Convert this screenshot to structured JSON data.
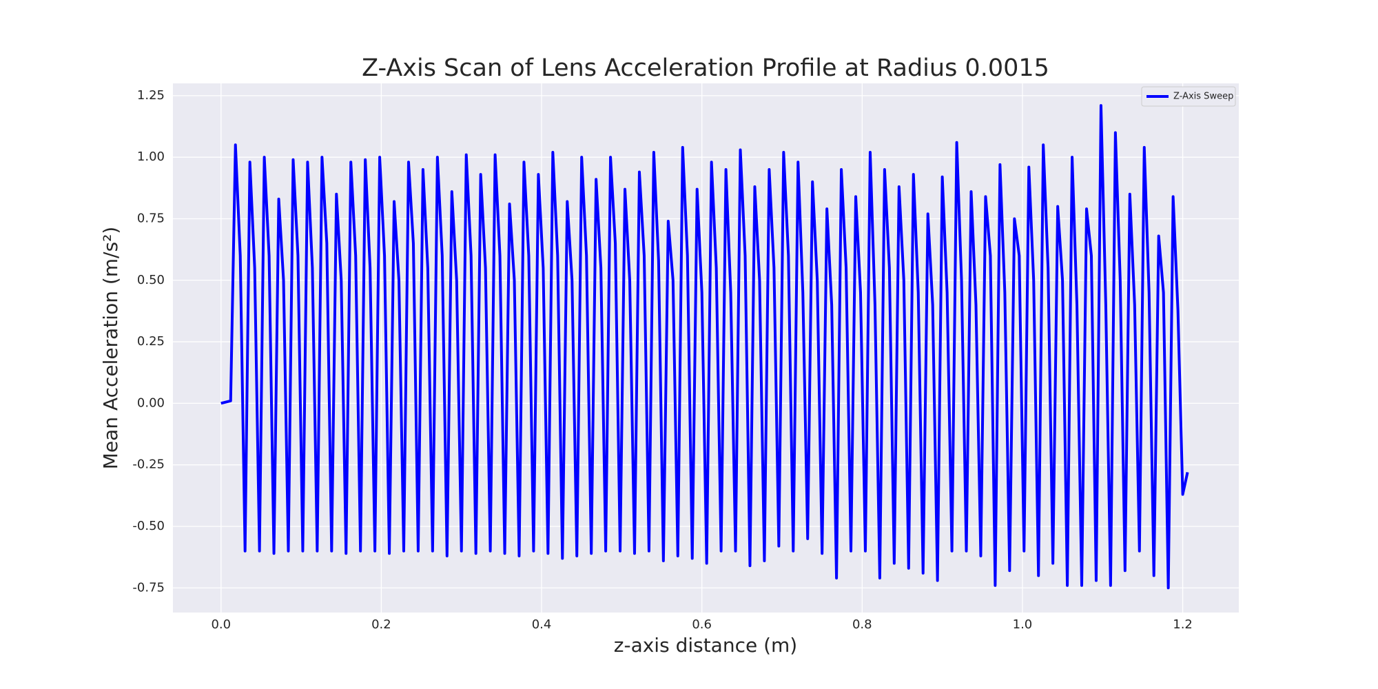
{
  "chart_data": {
    "type": "line",
    "title": "Z-Axis Scan of Lens Acceleration Profile at Radius 0.0015",
    "x_label": "z-axis distance (m)",
    "y_label": "Mean Acceleration (m/s²)",
    "xlim": [
      -0.06,
      1.27
    ],
    "ylim": [
      -0.85,
      1.3
    ],
    "xticks": [
      {
        "value": 0,
        "label": "0.0"
      },
      0.2,
      0.4,
      0.6,
      0.8,
      {
        "value": 1,
        "label": "1.0"
      },
      1.2
    ],
    "yticks": [
      {
        "value": -0.75,
        "label": "-0.75"
      },
      {
        "value": -0.5,
        "label": "-0.50"
      },
      -0.25,
      {
        "value": 0,
        "label": "0.00"
      },
      0.25,
      {
        "value": 0.5,
        "label": "0.50"
      },
      0.75,
      {
        "value": 1,
        "label": "1.00"
      },
      1.25
    ],
    "grid": true,
    "legend": "upper right",
    "x": [
      0,
      0.006,
      0.012,
      0.018,
      0.024,
      0.03,
      0.036,
      0.042,
      0.048,
      0.054,
      0.06,
      0.066,
      0.072,
      0.078,
      0.084,
      0.09,
      0.096,
      0.102,
      0.108,
      0.114,
      0.12,
      0.126,
      0.132,
      0.138,
      0.144,
      0.15,
      0.156,
      0.162,
      0.168,
      0.174,
      0.18,
      0.186,
      0.192,
      0.198,
      0.204,
      0.21,
      0.216,
      0.222,
      0.228,
      0.234,
      0.24,
      0.246,
      0.252,
      0.258,
      0.264,
      0.27,
      0.276,
      0.282,
      0.288,
      0.294,
      0.3,
      0.306,
      0.312,
      0.318,
      0.324,
      0.33,
      0.336,
      0.342,
      0.348,
      0.354,
      0.36,
      0.366,
      0.372,
      0.378,
      0.384,
      0.39,
      0.396,
      0.402,
      0.408,
      0.414,
      0.42,
      0.426,
      0.432,
      0.438,
      0.444,
      0.45,
      0.456,
      0.462,
      0.468,
      0.474,
      0.48,
      0.486,
      0.492,
      0.498,
      0.504,
      0.51,
      0.516,
      0.522,
      0.528,
      0.534,
      0.54,
      0.546,
      0.552,
      0.558,
      0.564,
      0.57,
      0.576,
      0.582,
      0.588,
      0.594,
      0.6,
      0.606,
      0.612,
      0.618,
      0.624,
      0.63,
      0.636,
      0.642,
      0.648,
      0.654,
      0.66,
      0.666,
      0.672,
      0.678,
      0.684,
      0.69,
      0.696,
      0.702,
      0.708,
      0.714,
      0.72,
      0.726,
      0.732,
      0.738,
      0.744,
      0.75,
      0.756,
      0.762,
      0.768,
      0.774,
      0.78,
      0.786,
      0.792,
      0.798,
      0.804,
      0.81,
      0.816,
      0.822,
      0.828,
      0.834,
      0.84,
      0.846,
      0.852,
      0.858,
      0.864,
      0.87,
      0.876,
      0.882,
      0.888,
      0.894,
      0.9,
      0.906,
      0.912,
      0.918,
      0.924,
      0.93,
      0.936,
      0.942,
      0.948,
      0.954,
      0.96,
      0.966,
      0.972,
      0.978,
      0.984,
      0.99,
      0.996,
      1.002,
      1.008,
      1.014,
      1.02,
      1.026,
      1.032,
      1.038,
      1.044,
      1.05,
      1.056,
      1.062,
      1.068,
      1.074,
      1.08,
      1.086,
      1.092,
      1.098,
      1.104,
      1.11,
      1.116,
      1.122,
      1.128,
      1.134,
      1.14,
      1.146,
      1.152,
      1.158,
      1.164,
      1.17,
      1.176,
      1.182,
      1.188,
      1.194,
      1.2,
      1.206
    ],
    "series": [
      {
        "name": "Z-Axis Sweep",
        "color": "#0000ff",
        "values": [
          0,
          0.005,
          0.01,
          1.05,
          0.6,
          -0.6,
          0.98,
          0.55,
          -0.6,
          1.0,
          0.6,
          -0.61,
          0.83,
          0.5,
          -0.6,
          0.99,
          0.6,
          -0.6,
          0.98,
          0.55,
          -0.6,
          1.0,
          0.65,
          -0.6,
          0.85,
          0.5,
          -0.61,
          0.98,
          0.6,
          -0.6,
          0.99,
          0.55,
          -0.6,
          1.0,
          0.6,
          -0.61,
          0.82,
          0.5,
          -0.6,
          0.98,
          0.65,
          -0.6,
          0.95,
          0.55,
          -0.6,
          1.0,
          0.6,
          -0.62,
          0.86,
          0.5,
          -0.6,
          1.01,
          0.6,
          -0.61,
          0.93,
          0.55,
          -0.6,
          1.01,
          0.6,
          -0.61,
          0.81,
          0.5,
          -0.62,
          0.98,
          0.6,
          -0.6,
          0.93,
          0.55,
          -0.61,
          1.02,
          0.6,
          -0.63,
          0.82,
          0.5,
          -0.62,
          1.0,
          0.6,
          -0.61,
          0.91,
          0.55,
          -0.6,
          1.0,
          0.65,
          -0.6,
          0.87,
          0.5,
          -0.61,
          0.94,
          0.6,
          -0.6,
          1.02,
          0.58,
          -0.64,
          0.74,
          0.5,
          -0.62,
          1.04,
          0.6,
          -0.63,
          0.87,
          0.45,
          -0.65,
          0.98,
          0.55,
          -0.6,
          0.95,
          0.45,
          -0.6,
          1.03,
          0.6,
          -0.66,
          0.88,
          0.5,
          -0.64,
          0.95,
          0.55,
          -0.58,
          1.02,
          0.6,
          -0.6,
          0.98,
          0.45,
          -0.55,
          0.9,
          0.5,
          -0.61,
          0.79,
          0.4,
          -0.71,
          0.95,
          0.55,
          -0.6,
          0.84,
          0.45,
          -0.6,
          1.02,
          0.4,
          -0.71,
          0.95,
          0.55,
          -0.65,
          0.88,
          0.5,
          -0.67,
          0.93,
          0.45,
          -0.69,
          0.77,
          0.4,
          -0.72,
          0.92,
          0.45,
          -0.6,
          1.06,
          0.5,
          -0.6,
          0.86,
          0.4,
          -0.62,
          0.84,
          0.6,
          -0.74,
          0.97,
          0.45,
          -0.68,
          0.75,
          0.6,
          -0.6,
          0.96,
          0.5,
          -0.7,
          1.05,
          0.55,
          -0.65,
          0.8,
          0.5,
          -0.74,
          1.0,
          0.4,
          -0.74,
          0.79,
          0.6,
          -0.72,
          1.21,
          0.4,
          -0.74,
          1.1,
          0.5,
          -0.68,
          0.85,
          0.4,
          -0.6,
          1.04,
          0.45,
          -0.7,
          0.68,
          0.45,
          -0.75,
          0.84,
          0.38,
          -0.37,
          -0.28
        ]
      }
    ]
  }
}
